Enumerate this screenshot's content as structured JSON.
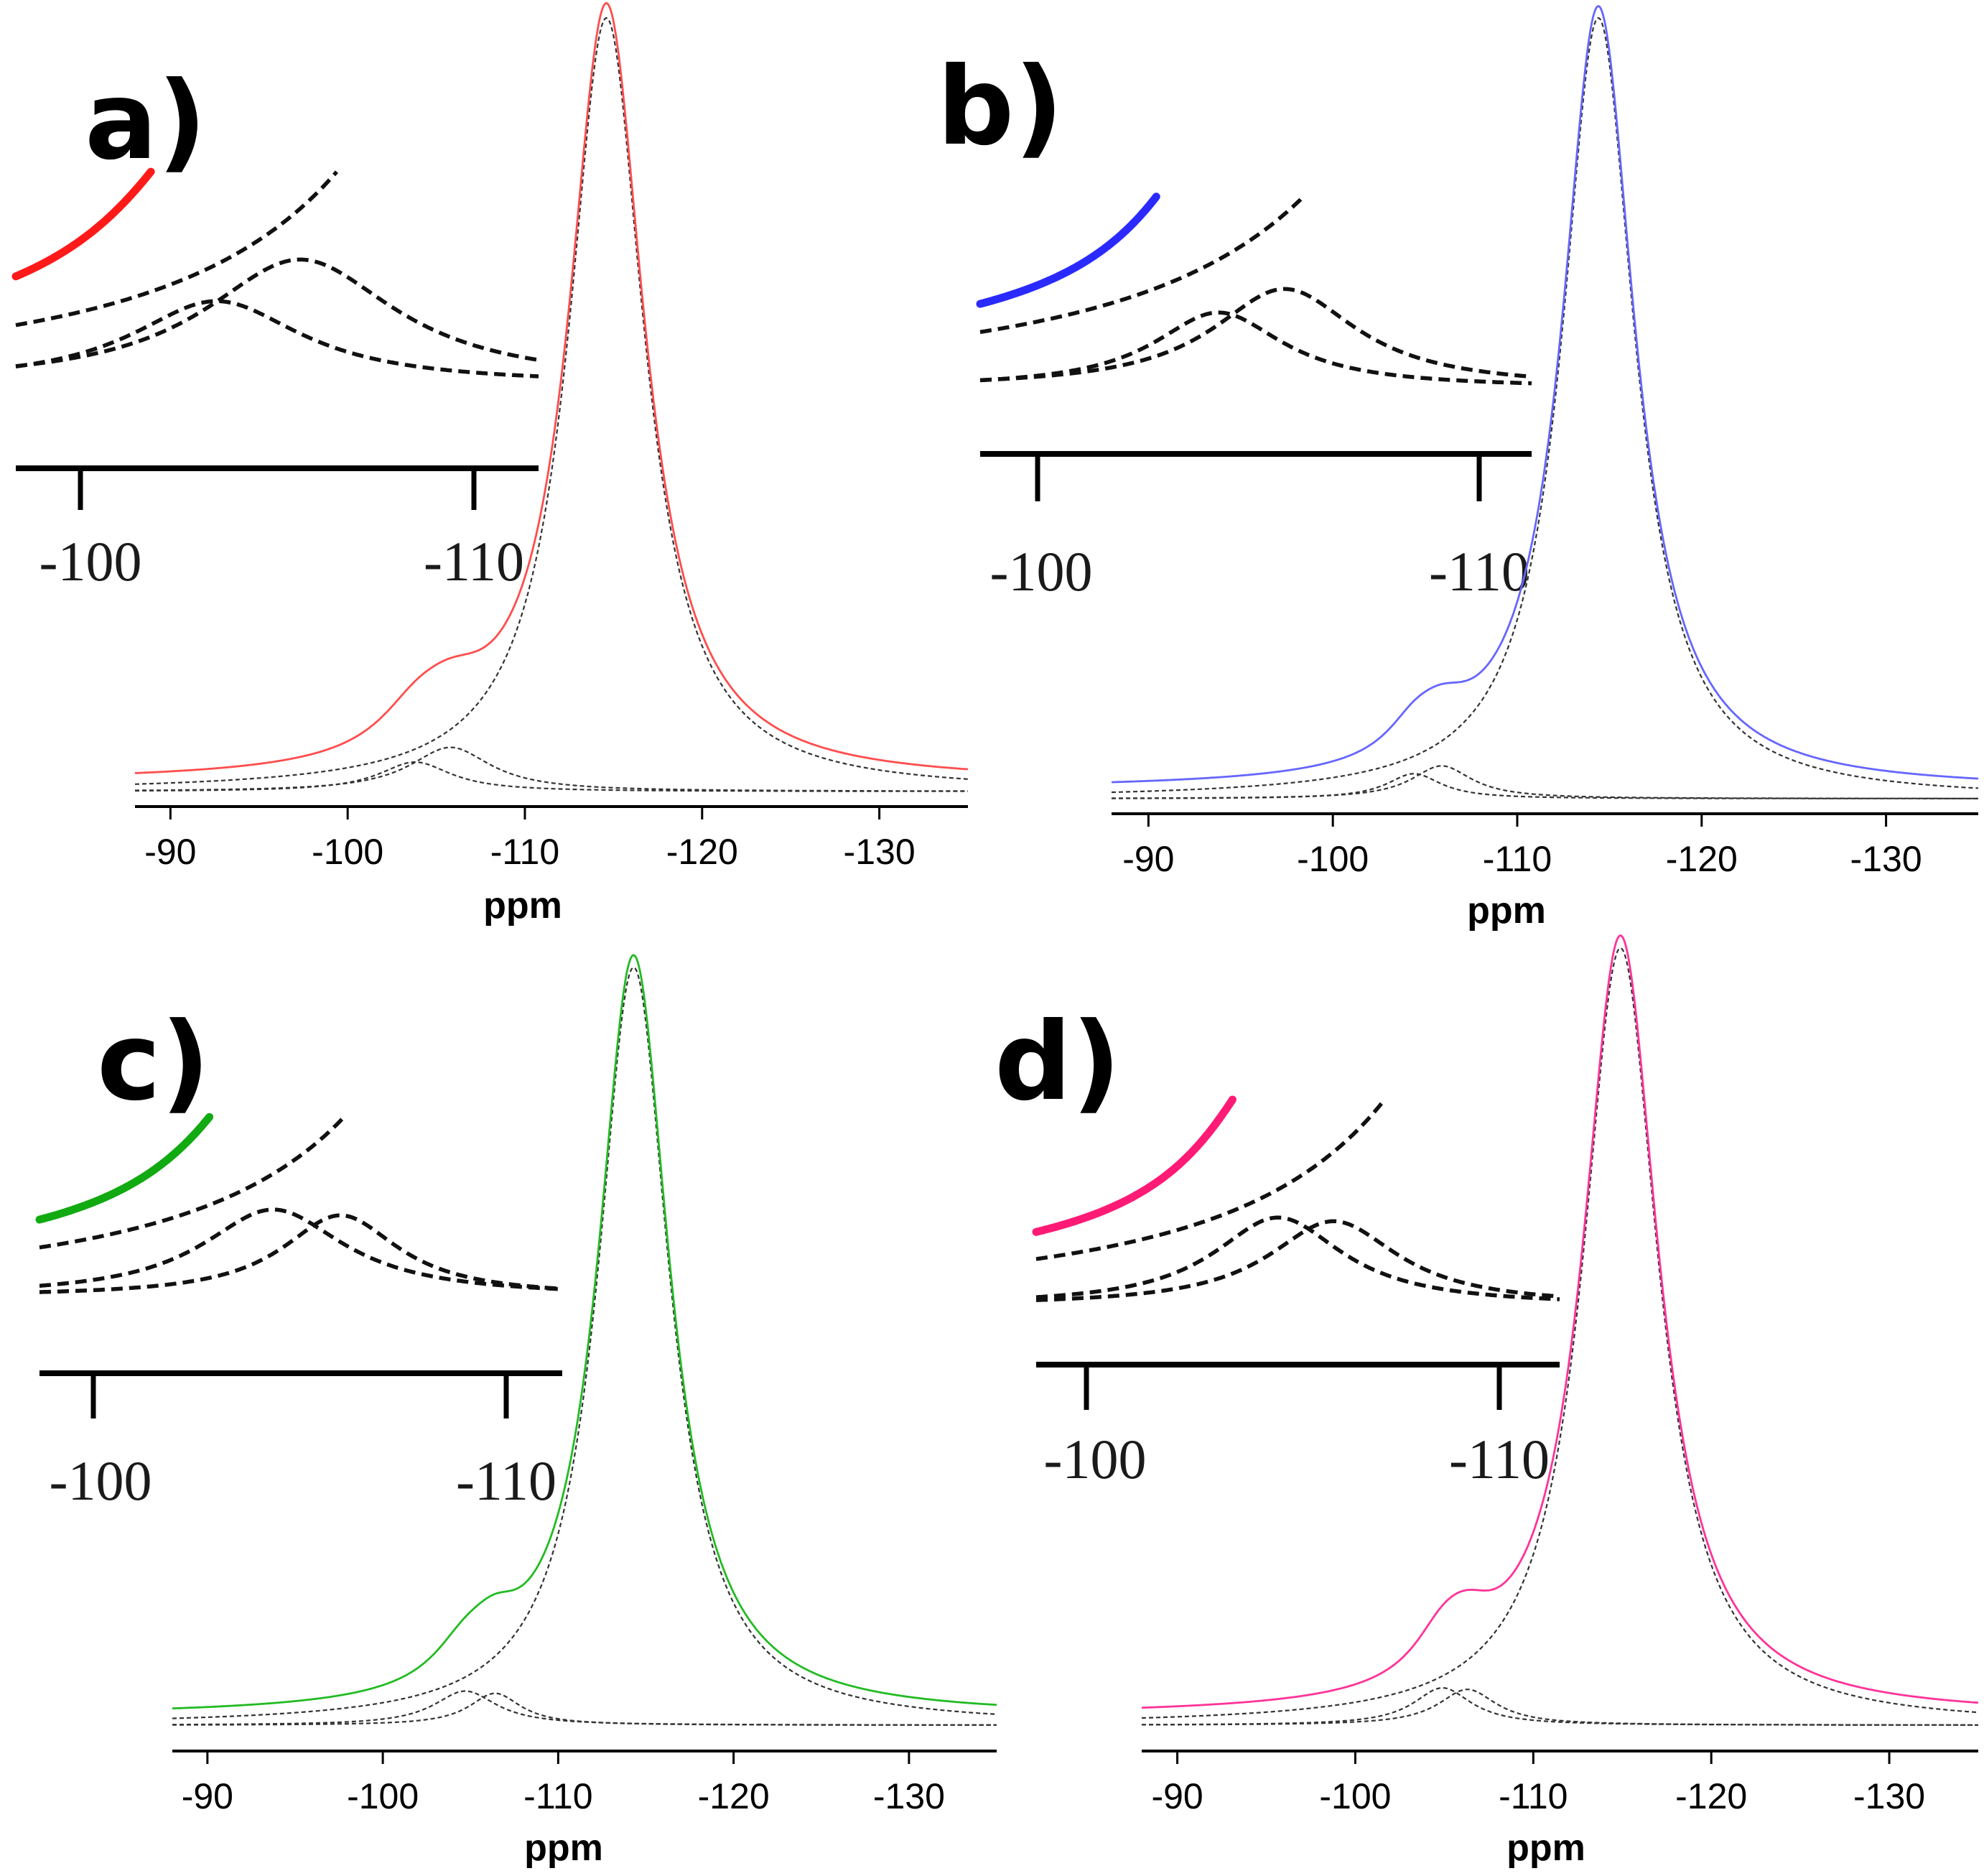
{
  "chart_data": [
    {
      "type": "line",
      "panel_label": "a)",
      "xlabel": "ppm",
      "xlim": [
        -88,
        -135
      ],
      "x_ticks": [
        -90,
        -100,
        -110,
        -120,
        -130
      ],
      "x_tick_labels": [
        "-90",
        "-100",
        "-110",
        "-120",
        "-130"
      ],
      "color": "#ff4d4d",
      "peaks": [
        {
          "center": -103.8,
          "height": 0.038,
          "width": 2.5
        },
        {
          "center": -105.8,
          "height": 0.057,
          "width": 2.8
        },
        {
          "center": -114.6,
          "height": 1.0,
          "width": 2.6
        }
      ],
      "inset": {
        "xlim": [
          -99,
          -111.5
        ],
        "x_ticks": [
          -100,
          -110
        ],
        "x_tick_labels": [
          "-100",
          "-110"
        ],
        "color": "#ff1a1a"
      }
    },
    {
      "type": "line",
      "panel_label": "b)",
      "xlabel": "ppm",
      "xlim": [
        -88,
        -135
      ],
      "x_ticks": [
        -90,
        -100,
        -110,
        -120,
        -130
      ],
      "x_tick_labels": [
        "-90",
        "-100",
        "-110",
        "-120",
        "-130"
      ],
      "color": "#6666ff",
      "peaks": [
        {
          "center": -104.4,
          "height": 0.032,
          "width": 1.8
        },
        {
          "center": -105.9,
          "height": 0.042,
          "width": 2.0
        },
        {
          "center": -114.4,
          "height": 1.0,
          "width": 2.4
        }
      ],
      "inset": {
        "xlim": [
          -99,
          -111.5
        ],
        "x_ticks": [
          -100,
          -110
        ],
        "x_tick_labels": [
          "-100",
          "-110"
        ],
        "color": "#2a2aff"
      }
    },
    {
      "type": "line",
      "panel_label": "c)",
      "xlabel": "ppm",
      "xlim": [
        -88,
        -135
      ],
      "x_ticks": [
        -90,
        -100,
        -110,
        -120,
        -130
      ],
      "x_tick_labels": [
        "-90",
        "-100",
        "-110",
        "-120",
        "-130"
      ],
      "color": "#22bb22",
      "peaks": [
        {
          "center": -104.7,
          "height": 0.045,
          "width": 2.2
        },
        {
          "center": -106.4,
          "height": 0.042,
          "width": 1.8
        },
        {
          "center": -114.3,
          "height": 1.0,
          "width": 2.5
        }
      ],
      "inset": {
        "xlim": [
          -98.8,
          -112
        ],
        "x_ticks": [
          -100,
          -110
        ],
        "x_tick_labels": [
          "-100",
          "-110"
        ],
        "color": "#11aa11"
      }
    },
    {
      "type": "line",
      "panel_label": "d)",
      "xlabel": "ppm",
      "xlim": [
        -88,
        -135
      ],
      "x_ticks": [
        -90,
        -100,
        -110,
        -120,
        -130
      ],
      "x_tick_labels": [
        "-90",
        "-100",
        "-110",
        "-120",
        "-130"
      ],
      "color": "#ff3399",
      "peaks": [
        {
          "center": -104.9,
          "height": 0.048,
          "width": 2.0
        },
        {
          "center": -106.3,
          "height": 0.046,
          "width": 2.0
        },
        {
          "center": -114.9,
          "height": 1.0,
          "width": 2.6
        }
      ],
      "inset": {
        "xlim": [
          -98.8,
          -112
        ],
        "x_ticks": [
          -100,
          -110
        ],
        "x_tick_labels": [
          "-100",
          "-110"
        ],
        "color": "#ff1a75"
      }
    }
  ]
}
